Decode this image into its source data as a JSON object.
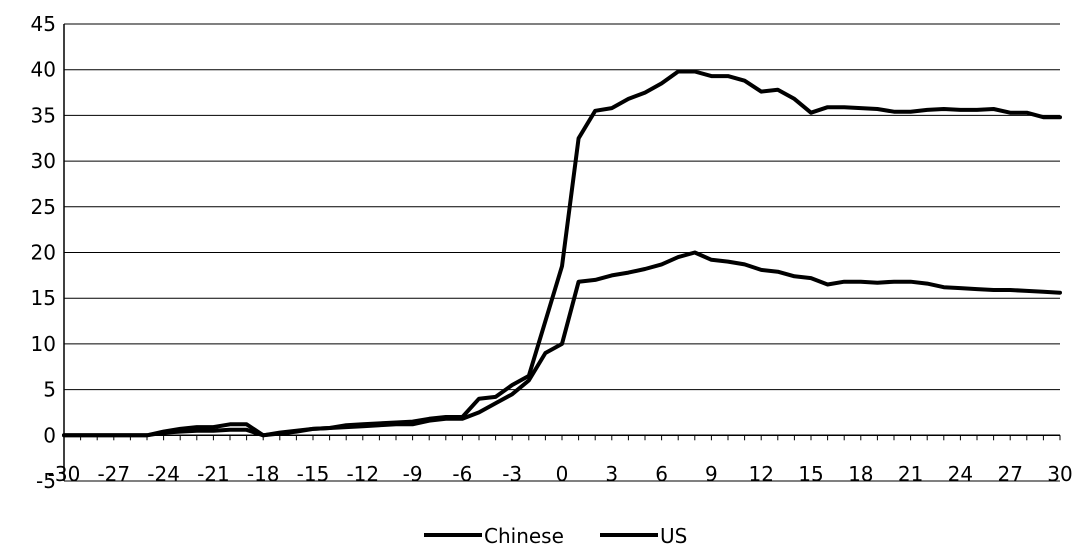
{
  "chart_data": {
    "type": "line",
    "title": "",
    "xlabel": "",
    "ylabel": "",
    "xlim": [
      -30,
      30
    ],
    "ylim": [
      -5,
      45
    ],
    "x_ticks": [
      -30,
      -27,
      -24,
      -21,
      -18,
      -15,
      -12,
      -9,
      -6,
      -3,
      0,
      3,
      6,
      9,
      12,
      15,
      18,
      21,
      24,
      27,
      30
    ],
    "x_tick_labels": [
      "-30",
      "-27",
      "-24",
      "-21",
      "-18",
      "-15",
      "-12",
      "-9",
      "-6",
      "-3",
      "0",
      "3",
      "6",
      "9",
      "12",
      "15",
      "18",
      "21",
      "24",
      "27",
      "30"
    ],
    "y_ticks": [
      -5,
      0,
      5,
      10,
      15,
      20,
      25,
      30,
      35,
      40,
      45
    ],
    "y_tick_labels": [
      "-5",
      "0",
      "5",
      "10",
      "15",
      "20",
      "25",
      "30",
      "35",
      "40",
      "45"
    ],
    "grid": true,
    "legend_position": "bottom",
    "x": [
      -30,
      -29,
      -28,
      -27,
      -26,
      -25,
      -24,
      -23,
      -22,
      -21,
      -20,
      -19,
      -18,
      -17,
      -16,
      -15,
      -14,
      -13,
      -12,
      -11,
      -10,
      -9,
      -8,
      -7,
      -6,
      -5,
      -4,
      -3,
      -2,
      -1,
      0,
      1,
      2,
      3,
      4,
      5,
      6,
      7,
      8,
      9,
      10,
      11,
      12,
      13,
      14,
      15,
      16,
      17,
      18,
      19,
      20,
      21,
      22,
      23,
      24,
      25,
      26,
      27,
      28,
      29,
      30
    ],
    "series": [
      {
        "name": "Chinese",
        "color": "#000000",
        "values": [
          0,
          0,
          0,
          0,
          0,
          0,
          0.3,
          0.4,
          0.5,
          0.5,
          0.6,
          0.6,
          0,
          0.3,
          0.5,
          0.7,
          0.8,
          0.9,
          1,
          1.1,
          1.2,
          1.2,
          1.6,
          1.8,
          1.8,
          2.5,
          3.5,
          4.5,
          6,
          9,
          10,
          16.8,
          17,
          17.5,
          17.8,
          18.2,
          18.7,
          19.5,
          20,
          19.2,
          19,
          18.7,
          18.1,
          17.9,
          17.4,
          17.2,
          16.5,
          16.8,
          16.8,
          16.7,
          16.8,
          16.8,
          16.6,
          16.2,
          16.1,
          16,
          15.9,
          15.9,
          15.8,
          15.7,
          15.6
        ]
      },
      {
        "name": "US",
        "color": "#000000",
        "values": [
          0,
          0,
          0,
          0,
          0,
          0,
          0.4,
          0.7,
          0.9,
          0.9,
          1.2,
          1.2,
          0,
          0.2,
          0.4,
          0.7,
          0.8,
          1.1,
          1.2,
          1.3,
          1.4,
          1.5,
          1.8,
          2,
          2,
          4,
          4.2,
          5.5,
          6.5,
          12.5,
          18.5,
          32.5,
          35.5,
          35.8,
          36.8,
          37.5,
          38.5,
          39.8,
          39.8,
          39.3,
          39.3,
          38.8,
          37.6,
          37.8,
          36.8,
          35.3,
          35.9,
          35.9,
          35.8,
          35.7,
          35.4,
          35.4,
          35.6,
          35.7,
          35.6,
          35.6,
          35.7,
          35.3,
          35.3,
          34.8,
          34.8
        ]
      }
    ]
  }
}
